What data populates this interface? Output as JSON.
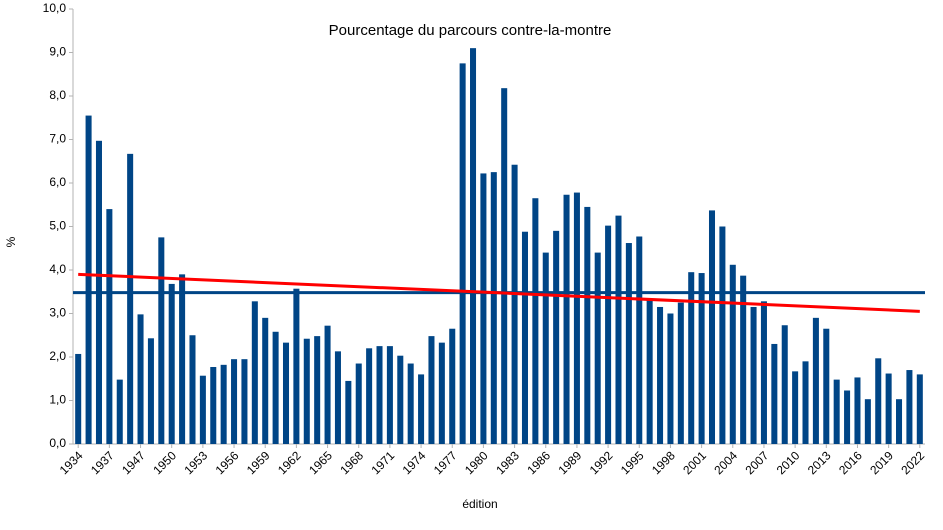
{
  "chart_data": {
    "type": "bar",
    "title": "Pourcentage du parcours contre-la-montre",
    "xlabel": "édition",
    "ylabel": "%",
    "categories": [
      "1934",
      null,
      null,
      "1937",
      null,
      null,
      "1947",
      null,
      null,
      "1950",
      null,
      null,
      "1953",
      null,
      null,
      "1956",
      null,
      null,
      "1959",
      null,
      null,
      "1962",
      null,
      null,
      "1965",
      null,
      null,
      "1968",
      null,
      null,
      "1971",
      null,
      null,
      "1974",
      null,
      null,
      "1977",
      null,
      null,
      "1980",
      null,
      null,
      "1983",
      null,
      null,
      "1986",
      null,
      null,
      "1989",
      null,
      null,
      "1992",
      null,
      null,
      "1995",
      null,
      null,
      "1998",
      null,
      null,
      "2001",
      null,
      null,
      "2004",
      null,
      null,
      "2007",
      null,
      null,
      "2010",
      null,
      null,
      "2013",
      null,
      null,
      "2016",
      null,
      null,
      "2019",
      null,
      null,
      "2022"
    ],
    "values": [
      2.07,
      7.55,
      6.97,
      5.4,
      1.48,
      6.67,
      2.98,
      2.43,
      4.75,
      3.68,
      3.9,
      2.5,
      1.57,
      1.77,
      1.82,
      1.95,
      1.95,
      3.28,
      2.9,
      2.58,
      2.33,
      3.57,
      2.42,
      2.48,
      2.72,
      2.13,
      1.45,
      1.85,
      2.2,
      2.25,
      2.25,
      2.03,
      1.85,
      1.6,
      2.48,
      2.33,
      2.65,
      8.75,
      9.1,
      6.22,
      6.25,
      8.18,
      6.42,
      4.88,
      5.65,
      4.4,
      4.9,
      5.73,
      5.78,
      5.45,
      4.4,
      5.02,
      5.25,
      4.62,
      4.77,
      3.32,
      3.15,
      3.0,
      3.25,
      3.95,
      3.93,
      5.37,
      5.0,
      4.12,
      3.87,
      3.15,
      3.28,
      2.3,
      2.73,
      1.67,
      1.9,
      2.9,
      2.65,
      1.48,
      1.23,
      1.53,
      1.03,
      1.97,
      1.62,
      1.03,
      1.7,
      1.6
    ],
    "color": "#004586",
    "mean": 3.48,
    "mean_color": "#004586",
    "trend": [
      3.9,
      3.05
    ],
    "trend_color": "#ff0000",
    "ylim": [
      0,
      10
    ],
    "yticks": [
      {
        "value": 0,
        "label": "0,0"
      },
      {
        "value": 1,
        "label": "1,0"
      },
      {
        "value": 2,
        "label": "2,0"
      },
      {
        "value": 3,
        "label": "3,0"
      },
      {
        "value": 4,
        "label": "4,0"
      },
      {
        "value": 5,
        "label": "5,0"
      },
      {
        "value": 6,
        "label": "6,0"
      },
      {
        "value": 7,
        "label": "7,0"
      },
      {
        "value": 8,
        "label": "8,0"
      },
      {
        "value": 9,
        "label": "9,0"
      },
      {
        "value": 10,
        "label": "10,0"
      }
    ],
    "grid": false
  }
}
